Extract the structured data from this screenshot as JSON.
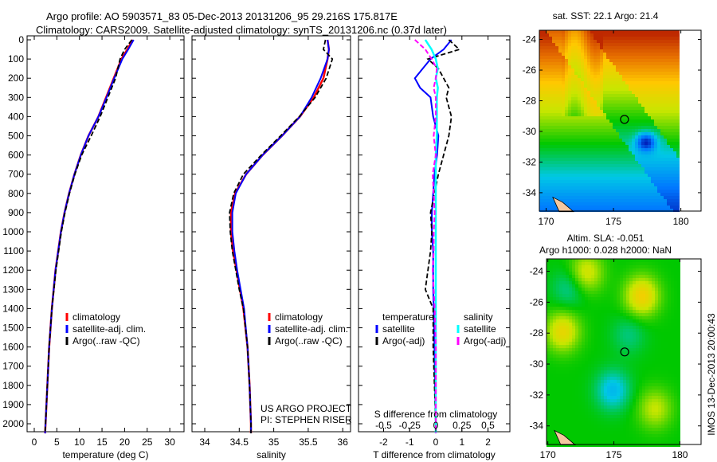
{
  "title": {
    "line1": "Argo profile: AO 5903571_83 05-Dec-2013 20131206_95 29.216S 175.817E",
    "line2": "Climatology: CARS2009. Satellite-adjusted climatology: synTS_20131206.nc (0.37d later)"
  },
  "colors": {
    "climatology": "#ff0000",
    "satellite": "#0000ff",
    "argo": "#000000",
    "sal_satellite": "#00ffff",
    "sal_argo": "#ff00ff"
  },
  "chart_data": [
    {
      "type": "line",
      "name": "temperature-profile",
      "xlabel": "temperature (deg C)",
      "ylabel": "depth",
      "xlim": [
        -1.5,
        33
      ],
      "ylim": [
        2050,
        0
      ],
      "xticks": [
        0,
        5,
        10,
        15,
        20,
        25,
        30
      ],
      "yticks": [
        0,
        100,
        200,
        300,
        400,
        500,
        600,
        700,
        800,
        900,
        1000,
        1100,
        1200,
        1300,
        1400,
        1500,
        1600,
        1700,
        1800,
        1900,
        2000
      ],
      "legend": [
        "climatology",
        "satellite-adj. clim.",
        "Argo(..raw -QC)"
      ],
      "depth": [
        0,
        50,
        100,
        200,
        300,
        400,
        500,
        600,
        700,
        800,
        900,
        1000,
        1200,
        1400,
        1600,
        1800,
        2000,
        2050
      ],
      "series": [
        {
          "name": "climatology",
          "values": [
            21.8,
            20.6,
            19.3,
            17.6,
            15.9,
            14.2,
            12.0,
            10.3,
            8.9,
            7.7,
            6.7,
            5.9,
            4.7,
            3.9,
            3.3,
            2.9,
            2.5,
            2.4
          ]
        },
        {
          "name": "satellite-adj. clim.",
          "values": [
            22.0,
            20.8,
            19.5,
            17.7,
            16.0,
            14.2,
            12.0,
            10.3,
            8.9,
            7.7,
            6.7,
            5.9,
            4.7,
            3.9,
            3.3,
            2.9,
            2.5,
            2.4
          ]
        },
        {
          "name": "Argo(..raw -QC)",
          "values": [
            21.6,
            20.0,
            19.0,
            18.0,
            16.3,
            14.6,
            12.6,
            10.5,
            9.0,
            7.8,
            6.8,
            6.0,
            4.8,
            3.9,
            3.3,
            2.9,
            2.5,
            2.4
          ]
        }
      ]
    },
    {
      "type": "line",
      "name": "salinity-profile",
      "xlabel": "salinity",
      "xlim": [
        33.82,
        36.1
      ],
      "ylim": [
        2050,
        0
      ],
      "xticks": [
        34,
        34.5,
        35,
        35.5,
        36
      ],
      "legend": [
        "climatology",
        "satellite-adj. clim.",
        "Argo(..raw -QC)"
      ],
      "annotation": [
        "US ARGO PROJECT",
        "PI: STEPHEN RISER"
      ],
      "depth": [
        0,
        50,
        100,
        200,
        300,
        400,
        500,
        600,
        700,
        800,
        900,
        1000,
        1100,
        1200,
        1300,
        1400,
        1600,
        1800,
        2000,
        2050
      ],
      "series": [
        {
          "name": "climatology",
          "values": [
            35.78,
            35.8,
            35.78,
            35.72,
            35.58,
            35.38,
            35.12,
            34.84,
            34.6,
            34.44,
            34.38,
            34.38,
            34.41,
            34.46,
            34.51,
            34.56,
            34.62,
            34.65,
            34.67,
            34.67
          ]
        },
        {
          "name": "satellite-adj. clim.",
          "values": [
            35.78,
            35.8,
            35.78,
            35.68,
            35.55,
            35.38,
            35.12,
            34.84,
            34.6,
            34.45,
            34.4,
            34.4,
            34.43,
            34.47,
            34.52,
            34.57,
            34.62,
            34.65,
            34.67,
            34.67
          ]
        },
        {
          "name": "Argo(..raw -QC)",
          "values": [
            35.75,
            35.72,
            35.85,
            35.76,
            35.6,
            35.37,
            35.1,
            34.82,
            34.56,
            34.42,
            34.36,
            34.37,
            34.4,
            34.45,
            34.5,
            34.56,
            34.62,
            34.65,
            34.67,
            34.67
          ]
        }
      ]
    },
    {
      "type": "line",
      "name": "difference-profile",
      "xlabel": "T difference from climatology",
      "x2label": "S difference from climatology",
      "xlim": [
        -3,
        2.85
      ],
      "xticks": [
        -2,
        -1,
        0,
        1,
        2
      ],
      "x2ticks": [
        -0.5,
        -0.25,
        0,
        0.25,
        0.5
      ],
      "x2tick_labels": [
        "-0.5",
        "-0.25",
        "0",
        "0.25",
        "0.5"
      ],
      "legend_titles": [
        "temperature",
        "salinity"
      ],
      "legend": [
        "satellite",
        "Argo(-adj)",
        "satellite",
        "Argo(-adj)"
      ],
      "depth": [
        0,
        50,
        100,
        150,
        200,
        250,
        300,
        400,
        500,
        600,
        700,
        800,
        900,
        1000,
        1100,
        1200,
        1300,
        1400,
        1600,
        1800,
        2000,
        2050
      ],
      "series": [
        {
          "name": "T satellite",
          "values": [
            0.6,
            0.3,
            -0.2,
            -0.5,
            -0.8,
            -0.6,
            -0.2,
            -0.1,
            0.1,
            0.05,
            -0.05,
            -0.1,
            -0.15,
            -0.15,
            -0.1,
            -0.1,
            -0.1,
            -0.08,
            -0.05,
            -0.03,
            0,
            0
          ]
        },
        {
          "name": "T Argo(-adj)",
          "values": [
            0.5,
            0.9,
            -0.3,
            0.1,
            0.3,
            0.5,
            0.4,
            0.6,
            0.5,
            0.3,
            0.1,
            -0.05,
            -0.2,
            -0.15,
            -0.2,
            -0.3,
            -0.4,
            -0.1,
            -0.1,
            -0.05,
            0,
            0
          ]
        },
        {
          "name": "S satellite",
          "values": [
            -0.1,
            -0.04,
            0,
            0.02,
            0,
            0.02,
            0.01,
            0.01,
            0.01,
            0.0,
            0.0,
            0.0,
            0.0,
            0.0,
            0.0,
            0.0,
            0.0,
            0.0,
            0.0,
            0.0,
            0.0,
            0.0
          ]
        },
        {
          "name": "S Argo(-adj)",
          "values": [
            -0.2,
            -0.1,
            -0.04,
            0.01,
            0.0,
            -0.02,
            0.0,
            0.0,
            -0.02,
            0.0,
            -0.03,
            -0.02,
            -0.01,
            -0.02,
            -0.02,
            -0.03,
            -0.02,
            -0.01,
            0,
            0,
            0,
            0
          ]
        }
      ]
    },
    {
      "type": "heatmap",
      "name": "sst-map",
      "title": "sat. SST: 22.1 Argo: 21.4",
      "xlim": [
        169.5,
        181.5
      ],
      "ylim": [
        -35.2,
        -23.4
      ],
      "xticks": [
        170,
        175,
        180
      ],
      "yticks": [
        -24,
        -26,
        -28,
        -30,
        -32,
        -34
      ],
      "ytick_labels": [
        "-24",
        "-26",
        "-28",
        "-30",
        "-32",
        "-34"
      ],
      "marker": {
        "lon": 175.817,
        "lat": -29.216
      }
    },
    {
      "type": "heatmap",
      "name": "sla-map",
      "title": "Altim. SLA: -0.051",
      "subtitle": "Argo h1000: 0.028 h2000: NaN",
      "xlim": [
        169.9,
        181.6
      ],
      "ylim": [
        -35.2,
        -23.2
      ],
      "xticks": [
        170,
        175,
        180
      ],
      "yticks": [
        -24,
        -26,
        -28,
        -30,
        -32,
        -34
      ],
      "ytick_labels": [
        "-24",
        "-26",
        "-28",
        "-30",
        "-32",
        "-34"
      ],
      "marker": {
        "lon": 175.817,
        "lat": -29.216
      },
      "side_label": "IMOS 13-Dec-2013 20:00:43"
    }
  ]
}
